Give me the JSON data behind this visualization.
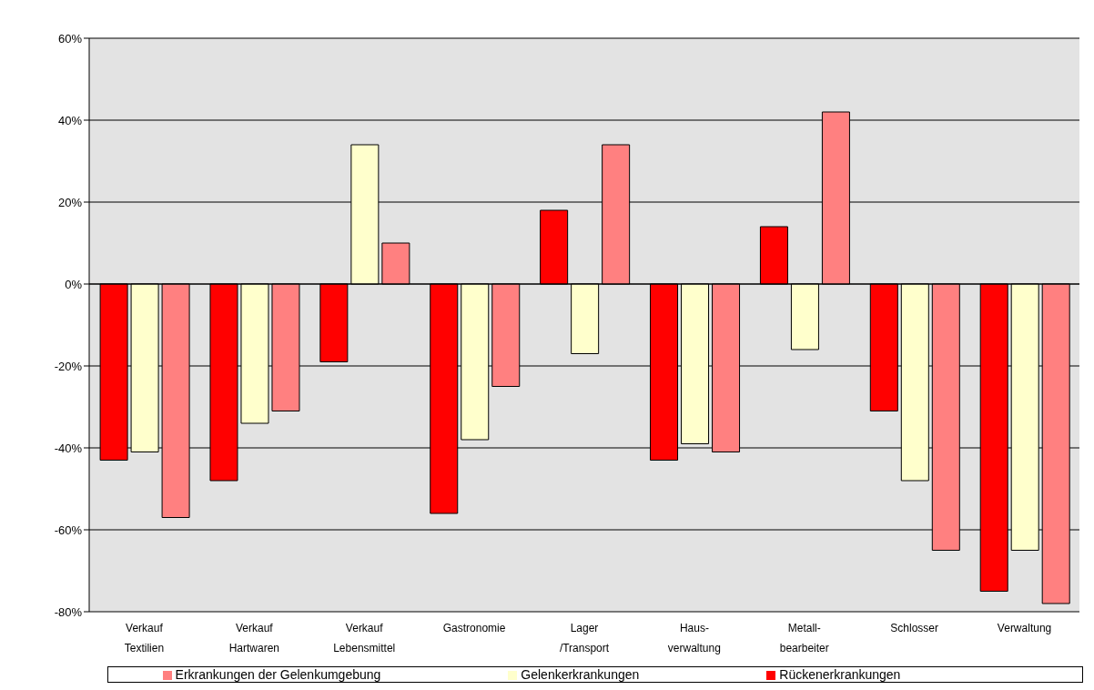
{
  "chart_data": {
    "type": "bar",
    "categories": [
      "Verkauf\nTextilien",
      "Verkauf\nHartwaren",
      "Verkauf\nLebensmittel",
      "Gastronomie",
      "Lager\n/Transport",
      "Haus-\nverwaltung",
      "Metall-\nbearbeiter",
      "Schlosser",
      "Verwaltung"
    ],
    "series": [
      {
        "name": "Rückenerkrankungen",
        "color": "#ff0000",
        "values": [
          -43,
          -48,
          -19,
          -56,
          18,
          -43,
          14,
          -31,
          -75
        ]
      },
      {
        "name": "Gelenkerkrankungen",
        "color": "#ffffcc",
        "values": [
          -41,
          -34,
          34,
          -38,
          -17,
          -39,
          -16,
          -48,
          -65
        ]
      },
      {
        "name": "Erkrankungen der Gelenkumgebung",
        "color": "#ff8080",
        "values": [
          -57,
          -31,
          10,
          -25,
          34,
          -41,
          42,
          -65,
          -78
        ]
      }
    ],
    "ylim": [
      -80,
      60
    ],
    "yticks": [
      {
        "value": -80,
        "label": "-80%"
      },
      {
        "value": -60,
        "label": "-60%"
      },
      {
        "value": -40,
        "label": "-40%"
      },
      {
        "value": -20,
        "label": "-20%"
      },
      {
        "value": 0,
        "label": "0%"
      },
      {
        "value": 20,
        "label": "20%"
      },
      {
        "value": 40,
        "label": "40%"
      },
      {
        "value": 60,
        "label": "60%"
      }
    ],
    "grid": "y",
    "legend": "bottom"
  }
}
